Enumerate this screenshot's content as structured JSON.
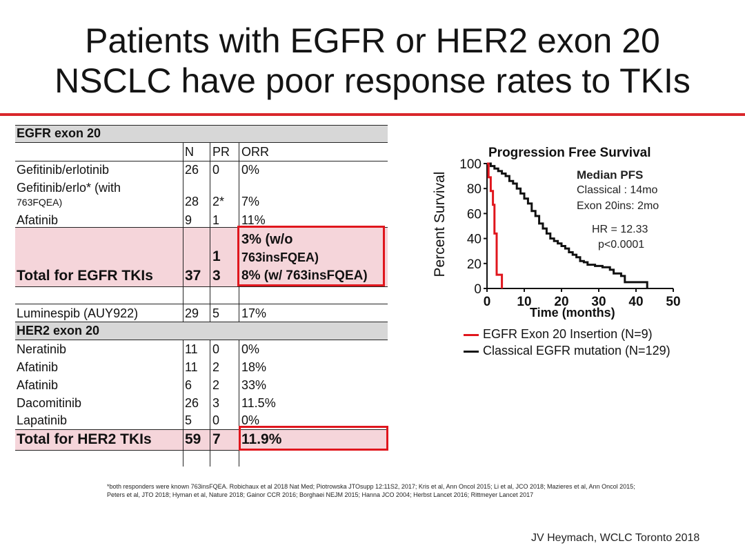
{
  "title_line1": "Patients with EGFR or HER2 exon 20",
  "title_line2": "NSCLC have poor response rates to TKIs",
  "table": {
    "egfr_header": "EGFR exon 20",
    "col_n": "N",
    "col_pr": "PR",
    "col_orr": "ORR",
    "egfr_rows": [
      {
        "name": "Gefitinib/erlotinib",
        "n": "26",
        "pr": "0",
        "orr": "0%"
      },
      {
        "name_line1": "Gefitinib/erlo* (with",
        "name_line2": "763FQEA)",
        "n": "28",
        "pr": "2*",
        "orr": "7%"
      },
      {
        "name": "Afatinib",
        "n": "9",
        "pr": "1",
        "orr": "11%"
      }
    ],
    "egfr_total": {
      "name": "Total for EGFR TKIs",
      "n": "37",
      "pr_line1": "1",
      "pr_line2": "3",
      "orr_line1": "3% (w/o",
      "orr_line2": "763insFQEA)",
      "orr_line3": "8% (w/ 763insFQEA)"
    },
    "luminespib": {
      "name": "Luminespib (AUY922)",
      "n": "29",
      "pr": "5",
      "orr": "17%"
    },
    "her2_header": "HER2 exon 20",
    "her2_rows": [
      {
        "name": "Neratinib",
        "n": "11",
        "pr": "0",
        "orr": "0%"
      },
      {
        "name": "Afatinib",
        "n": "11",
        "pr": "2",
        "orr": "18%"
      },
      {
        "name": "Afatinib",
        "n": "6",
        "pr": "2",
        "orr": "33%"
      },
      {
        "name": "Dacomitinib",
        "n": "26",
        "pr": "3",
        "orr": "11.5%"
      },
      {
        "name": "Lapatinib",
        "n": "5",
        "pr": "0",
        "orr": "0%"
      }
    ],
    "her2_total": {
      "name": "Total for HER2 TKIs",
      "n": "59",
      "pr": "7",
      "orr": "11.9%"
    }
  },
  "chart_data": {
    "type": "line",
    "title": "Progression Free Survival",
    "xlabel": "Time (months)",
    "ylabel": "Percent Survival",
    "xlim": [
      0,
      50
    ],
    "ylim": [
      0,
      100
    ],
    "x_ticks": [
      "0",
      "10",
      "20",
      "30",
      "40",
      "50"
    ],
    "y_ticks": [
      "0",
      "20",
      "40",
      "60",
      "80",
      "100"
    ],
    "annotations": {
      "median_title": "Median PFS",
      "classical": "Classical : 14mo",
      "exon20": "Exon 20ins: 2mo",
      "hr": "HR = 12.33",
      "p": "p<0.0001"
    },
    "series": [
      {
        "name": "EGFR Exon 20 Insertion (N=9)",
        "color": "#e0161d",
        "x": [
          0,
          0.4,
          0.4,
          1.0,
          1.0,
          1.6,
          1.6,
          2.0,
          2.0,
          2.6,
          2.6,
          3.0,
          3.0,
          4.0,
          4.0
        ],
        "y": [
          100,
          100,
          89,
          89,
          78,
          78,
          67,
          67,
          44,
          44,
          11,
          11,
          11,
          11,
          0
        ]
      },
      {
        "name": "Classical EGFR mutation (N=129)",
        "color": "#111111",
        "x": [
          0,
          1,
          1,
          2,
          2,
          3,
          3,
          4,
          4,
          5,
          5,
          6,
          6,
          7,
          7,
          8,
          8,
          9,
          9,
          10,
          10,
          11,
          11,
          12,
          12,
          13,
          13,
          14,
          14,
          15,
          15,
          16,
          16,
          17,
          17,
          18,
          18,
          19,
          19,
          20,
          20,
          21,
          21,
          22,
          22,
          23,
          23,
          24,
          24,
          25,
          25,
          26,
          26,
          27,
          27,
          29,
          29,
          31,
          31,
          33,
          33,
          34,
          34,
          36,
          36,
          37,
          37,
          43,
          43
        ],
        "y": [
          100,
          100,
          98,
          98,
          96,
          96,
          94,
          94,
          92,
          92,
          90,
          90,
          86,
          86,
          84,
          84,
          80,
          80,
          76,
          76,
          72,
          72,
          68,
          68,
          62,
          62,
          58,
          58,
          52,
          52,
          48,
          48,
          44,
          44,
          40,
          40,
          38,
          38,
          36,
          36,
          34,
          34,
          32,
          32,
          29,
          29,
          27,
          27,
          25,
          25,
          22,
          22,
          21,
          21,
          19,
          19,
          18,
          18,
          17,
          17,
          15,
          15,
          12,
          12,
          10,
          10,
          5,
          5,
          0
        ]
      }
    ]
  },
  "footnote_line1": "*both responders were known 763insFQEA.   Robichaux et al 2018 Nat Med; Piotrowska JTOsupp 12:11S2, 2017; Kris et al, Ann Oncol 2015; Li et al, JCO 2018; Mazieres et al, Ann Oncol 2015;",
  "footnote_line2": "Peters et al, JTO 2018; Hyman et al, Nature 2018; Gainor CCR 2016;  Borghaei NEJM 2015; Hanna JCO 2004; Herbst Lancet 2016; Rittmeyer Lancet 2017",
  "credit": "JV Heymach, WCLC Toronto 2018",
  "colors": {
    "accent_red": "#e0161d",
    "highlight_pink": "#f5d5da",
    "header_grey": "#d7d7d7"
  }
}
